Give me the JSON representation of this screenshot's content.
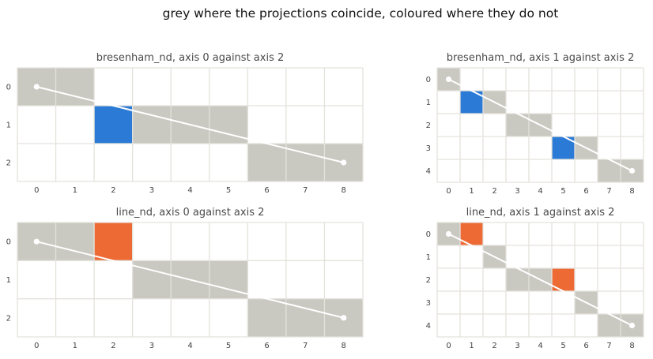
{
  "suptitle": "grey where the projections coincide, coloured where they do not",
  "colors": {
    "match": "#c9c8c1",
    "bresenham_only": "#2a7ad6",
    "line_only": "#ee6a35",
    "grid": "#e4e2dc",
    "segment": "#ffffff"
  },
  "chart_data": [
    {
      "type": "heatmap",
      "title": "bresenham_nd, axis 0 against axis 2",
      "x_ticks": [
        "0",
        "1",
        "2",
        "3",
        "4",
        "5",
        "6",
        "7",
        "8"
      ],
      "y_ticks": [
        "0",
        "1",
        "2"
      ],
      "segment": {
        "start": [
          0,
          0
        ],
        "end": [
          8,
          2
        ]
      },
      "cells": [
        {
          "x": 0,
          "y": 0,
          "state": "match"
        },
        {
          "x": 1,
          "y": 0,
          "state": "match"
        },
        {
          "x": 2,
          "y": 1,
          "state": "bresenham_only"
        },
        {
          "x": 3,
          "y": 1,
          "state": "match"
        },
        {
          "x": 4,
          "y": 1,
          "state": "match"
        },
        {
          "x": 5,
          "y": 1,
          "state": "match"
        },
        {
          "x": 6,
          "y": 2,
          "state": "match"
        },
        {
          "x": 7,
          "y": 2,
          "state": "match"
        },
        {
          "x": 8,
          "y": 2,
          "state": "match"
        }
      ]
    },
    {
      "type": "heatmap",
      "title": "bresenham_nd, axis 1 against axis 2",
      "x_ticks": [
        "0",
        "1",
        "2",
        "3",
        "4",
        "5",
        "6",
        "7",
        "8"
      ],
      "y_ticks": [
        "0",
        "1",
        "2",
        "3",
        "4"
      ],
      "segment": {
        "start": [
          0,
          0
        ],
        "end": [
          8,
          4
        ]
      },
      "cells": [
        {
          "x": 0,
          "y": 0,
          "state": "match"
        },
        {
          "x": 1,
          "y": 1,
          "state": "bresenham_only"
        },
        {
          "x": 2,
          "y": 1,
          "state": "match"
        },
        {
          "x": 3,
          "y": 2,
          "state": "match"
        },
        {
          "x": 4,
          "y": 2,
          "state": "match"
        },
        {
          "x": 5,
          "y": 3,
          "state": "bresenham_only"
        },
        {
          "x": 6,
          "y": 3,
          "state": "match"
        },
        {
          "x": 7,
          "y": 4,
          "state": "match"
        },
        {
          "x": 8,
          "y": 4,
          "state": "match"
        }
      ]
    },
    {
      "type": "heatmap",
      "title": "line_nd, axis 0 against axis 2",
      "x_ticks": [
        "0",
        "1",
        "2",
        "3",
        "4",
        "5",
        "6",
        "7",
        "8"
      ],
      "y_ticks": [
        "0",
        "1",
        "2"
      ],
      "segment": {
        "start": [
          0,
          0
        ],
        "end": [
          8,
          2
        ]
      },
      "cells": [
        {
          "x": 0,
          "y": 0,
          "state": "match"
        },
        {
          "x": 1,
          "y": 0,
          "state": "match"
        },
        {
          "x": 2,
          "y": 0,
          "state": "line_only"
        },
        {
          "x": 3,
          "y": 1,
          "state": "match"
        },
        {
          "x": 4,
          "y": 1,
          "state": "match"
        },
        {
          "x": 5,
          "y": 1,
          "state": "match"
        },
        {
          "x": 6,
          "y": 2,
          "state": "match"
        },
        {
          "x": 7,
          "y": 2,
          "state": "match"
        },
        {
          "x": 8,
          "y": 2,
          "state": "match"
        }
      ]
    },
    {
      "type": "heatmap",
      "title": "line_nd, axis 1 against axis 2",
      "x_ticks": [
        "0",
        "1",
        "2",
        "3",
        "4",
        "5",
        "6",
        "7",
        "8"
      ],
      "y_ticks": [
        "0",
        "1",
        "2",
        "3",
        "4"
      ],
      "segment": {
        "start": [
          0,
          0
        ],
        "end": [
          8,
          4
        ]
      },
      "cells": [
        {
          "x": 0,
          "y": 0,
          "state": "match"
        },
        {
          "x": 1,
          "y": 0,
          "state": "line_only"
        },
        {
          "x": 2,
          "y": 1,
          "state": "match"
        },
        {
          "x": 3,
          "y": 2,
          "state": "match"
        },
        {
          "x": 4,
          "y": 2,
          "state": "match"
        },
        {
          "x": 5,
          "y": 2,
          "state": "line_only"
        },
        {
          "x": 6,
          "y": 3,
          "state": "match"
        },
        {
          "x": 7,
          "y": 4,
          "state": "match"
        },
        {
          "x": 8,
          "y": 4,
          "state": "match"
        }
      ]
    }
  ]
}
